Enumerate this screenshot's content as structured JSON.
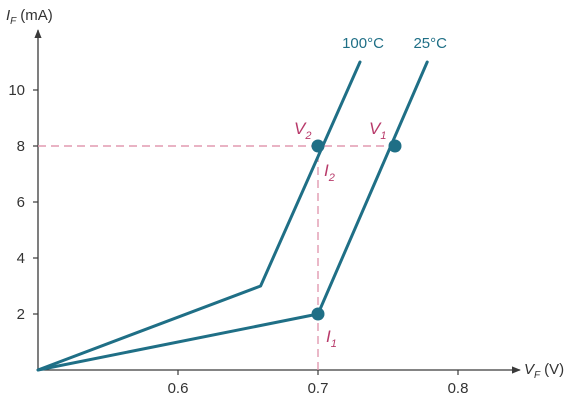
{
  "chart_data": {
    "type": "line",
    "ylabel": "I",
    "ylabel_sub": "F",
    "ylabel_unit": "(mA)",
    "xlabel": "V",
    "xlabel_sub": "F",
    "xlabel_unit": "(V)",
    "xlim": [
      0.5,
      0.82
    ],
    "ylim": [
      0,
      12
    ],
    "x_ticks": [
      0.6,
      0.7,
      0.8
    ],
    "x_tick_labels": [
      "0.6",
      "0.7",
      "0.8"
    ],
    "y_ticks": [
      2,
      4,
      6,
      8,
      10
    ],
    "y_tick_labels": [
      "2",
      "4",
      "6",
      "8",
      "10"
    ],
    "series": [
      {
        "name": "100°C",
        "x": [
          0.5,
          0.659,
          0.73
        ],
        "y": [
          0,
          3,
          11
        ]
      },
      {
        "name": "25°C",
        "x": [
          0.5,
          0.7,
          0.778
        ],
        "y": [
          0,
          2,
          11
        ]
      }
    ],
    "reference_lines": [
      {
        "orientation": "horizontal",
        "y": 8,
        "x_from": 0.5,
        "x_to": 0.755
      },
      {
        "orientation": "vertical",
        "x": 0.7,
        "y_from": 0,
        "y_to": 8
      }
    ],
    "points": [
      {
        "x": 0.7,
        "y": 8,
        "label": "V",
        "sub": "2"
      },
      {
        "x": 0.755,
        "y": 8,
        "label": "V",
        "sub": "1"
      },
      {
        "x": 0.7,
        "y": 8,
        "label": "I",
        "sub": "2"
      },
      {
        "x": 0.7,
        "y": 2,
        "label": "I",
        "sub": "1"
      }
    ],
    "grid": false,
    "colors": {
      "series": "#1f6f86",
      "reference": "#e29ab0",
      "point": "#1f6f86",
      "point_label": "#b83a6a",
      "axis": "#3a3a3a"
    }
  }
}
